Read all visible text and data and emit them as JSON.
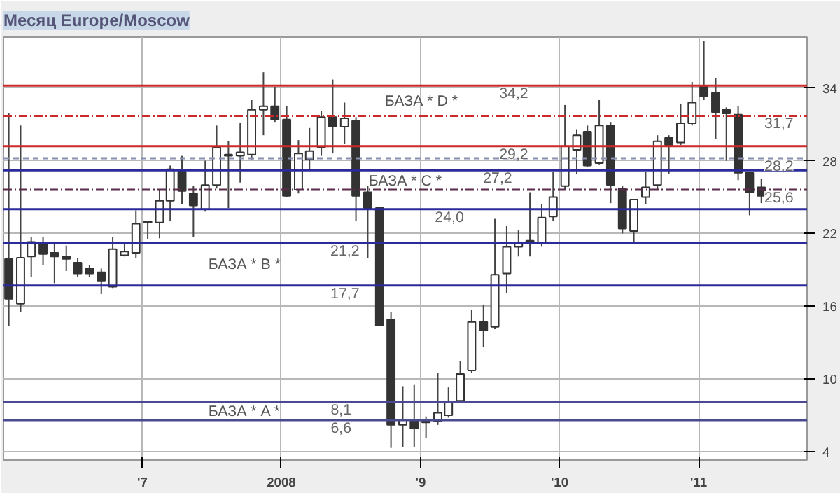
{
  "chart_data": {
    "type": "candlestick",
    "title": "Месяц Europe/Moscow",
    "x": [
      "2006-01-15",
      "2006-02-15",
      "2006-03-15",
      "2006-04-15",
      "2006-05-15",
      "2006-06-15",
      "2006-07-15",
      "2006-08-15",
      "2006-09-15",
      "2006-10-15",
      "2006-11-15",
      "2006-12-15",
      "2007-01-15",
      "2007-02-15",
      "2007-03-15",
      "2007-04-15",
      "2007-05-15",
      "2007-06-15",
      "2007-07-15",
      "2007-08-15",
      "2007-09-15",
      "2007-10-15",
      "2007-11-15",
      "2007-12-15",
      "2008-01-15",
      "2008-02-15",
      "2008-03-15",
      "2008-04-15",
      "2008-05-15",
      "2008-06-15",
      "2008-07-15",
      "2008-08-15",
      "2008-09-15",
      "2008-10-15",
      "2008-11-15",
      "2008-12-15",
      "2009-01-15",
      "2009-02-15",
      "2009-03-15",
      "2009-04-15",
      "2009-05-15",
      "2009-06-15",
      "2009-07-15",
      "2009-08-15",
      "2009-09-15",
      "2009-10-15",
      "2009-11-15",
      "2009-12-15",
      "2010-01-15",
      "2010-02-15",
      "2010-03-15",
      "2010-04-15",
      "2010-05-15",
      "2010-06-15",
      "2010-07-15",
      "2010-08-15",
      "2010-09-15",
      "2010-10-15",
      "2010-11-15",
      "2010-12-15",
      "2011-01-15",
      "2011-02-15",
      "2011-03-15",
      "2011-04-15",
      "2011-05-15",
      "2011-06-15"
    ],
    "ohlc": [
      [
        19.9,
        31.9,
        14.4,
        16.6
      ],
      [
        16.2,
        30.9,
        15.5,
        20.0
      ],
      [
        20.1,
        21.7,
        18.4,
        21.3
      ],
      [
        21.1,
        21.7,
        19.4,
        20.3
      ],
      [
        20.4,
        21.2,
        17.9,
        20.1
      ],
      [
        20.1,
        21.0,
        18.9,
        19.9
      ],
      [
        19.6,
        20.0,
        18.4,
        18.7
      ],
      [
        19.1,
        19.4,
        18.4,
        18.7
      ],
      [
        18.8,
        19.1,
        17.0,
        18.1
      ],
      [
        17.6,
        21.7,
        17.5,
        20.7
      ],
      [
        20.2,
        21.2,
        20.1,
        20.5
      ],
      [
        20.4,
        23.9,
        20.0,
        22.8
      ],
      [
        22.9,
        23.0,
        21.5,
        23.0
      ],
      [
        22.9,
        25.6,
        21.6,
        24.7
      ],
      [
        24.7,
        27.6,
        23.0,
        27.3
      ],
      [
        27.1,
        28.4,
        24.4,
        25.5
      ],
      [
        25.3,
        25.9,
        21.7,
        24.3
      ],
      [
        24.0,
        28.0,
        23.8,
        26.0
      ],
      [
        26.0,
        30.9,
        25.7,
        29.1
      ],
      [
        28.4,
        29.6,
        24.1,
        28.5
      ],
      [
        28.4,
        31.1,
        26.2,
        28.7
      ],
      [
        28.5,
        33.0,
        28.1,
        32.2
      ],
      [
        32.2,
        35.3,
        30.1,
        32.5
      ],
      [
        32.5,
        34.1,
        31.2,
        31.4
      ],
      [
        31.4,
        32.5,
        25.0,
        25.1
      ],
      [
        25.6,
        29.7,
        25.3,
        28.6
      ],
      [
        28.1,
        30.7,
        27.3,
        28.8
      ],
      [
        29.1,
        32.1,
        28.4,
        31.6
      ],
      [
        31.6,
        34.7,
        28.6,
        30.8
      ],
      [
        30.8,
        32.8,
        29.4,
        31.5
      ],
      [
        31.3,
        31.6,
        23.0,
        25.1
      ],
      [
        25.4,
        25.9,
        20.0,
        24.1
      ],
      [
        24.1,
        24.1,
        14.4,
        14.4
      ],
      [
        14.9,
        15.5,
        4.3,
        6.2
      ],
      [
        6.2,
        9.4,
        4.4,
        6.6
      ],
      [
        6.5,
        9.5,
        4.4,
        5.9
      ],
      [
        6.4,
        6.9,
        5.1,
        6.5
      ],
      [
        6.5,
        10.5,
        6.2,
        7.2
      ],
      [
        7.0,
        9.3,
        6.8,
        8.1
      ],
      [
        8.2,
        11.5,
        8.0,
        10.4
      ],
      [
        10.7,
        15.7,
        10.5,
        14.7
      ],
      [
        14.7,
        16.1,
        12.6,
        14.0
      ],
      [
        14.3,
        23.2,
        14.1,
        18.6
      ],
      [
        18.7,
        22.6,
        17.1,
        20.9
      ],
      [
        20.9,
        22.3,
        20.1,
        21.2
      ],
      [
        21.4,
        25.4,
        20.1,
        21.2
      ],
      [
        21.2,
        24.4,
        20.9,
        23.3
      ],
      [
        23.4,
        27.1,
        23.0,
        25.0
      ],
      [
        25.9,
        32.6,
        25.6,
        29.2
      ],
      [
        28.9,
        30.6,
        26.9,
        30.1
      ],
      [
        30.4,
        30.9,
        27.5,
        27.6
      ],
      [
        27.8,
        33.0,
        27.7,
        30.9
      ],
      [
        30.9,
        31.2,
        24.5,
        26.0
      ],
      [
        25.7,
        25.9,
        22.0,
        22.4
      ],
      [
        22.2,
        24.8,
        21.1,
        24.8
      ],
      [
        25.0,
        27.1,
        24.4,
        25.8
      ],
      [
        26.0,
        30.1,
        25.6,
        29.6
      ],
      [
        29.9,
        30.1,
        26.9,
        29.3
      ],
      [
        29.5,
        32.7,
        29.3,
        31.1
      ],
      [
        31.1,
        34.5,
        30.9,
        32.8
      ],
      [
        34.1,
        37.9,
        33.0,
        33.3
      ],
      [
        33.6,
        34.8,
        29.8,
        32.0
      ],
      [
        32.2,
        32.4,
        28.0,
        31.9
      ],
      [
        31.8,
        32.5,
        26.4,
        27.0
      ],
      [
        27.0,
        27.0,
        23.5,
        25.4
      ],
      [
        25.8,
        26.5,
        24.5,
        25.1
      ]
    ],
    "xlim": [
      "2006-01-01",
      "2011-10-13"
    ],
    "ylim": [
      3.3,
      38.2
    ],
    "xticks": [
      {
        "value": "2007-01-01",
        "label": "'7"
      },
      {
        "value": "2008-01-01",
        "label": "2008"
      },
      {
        "value": "2009-01-01",
        "label": "'9"
      },
      {
        "value": "2010-01-01",
        "label": "'10"
      },
      {
        "value": "2011-01-01",
        "label": "'11"
      }
    ],
    "yticks": [
      4,
      10,
      16,
      22,
      28,
      34
    ],
    "grid": true,
    "ref_lines": [
      {
        "axis": "y",
        "value": 34.2,
        "label": "34,2",
        "color": "#cc2a2a",
        "line_style": "solid"
      },
      {
        "axis": "y",
        "value": 31.7,
        "label": "31,7",
        "color": "#cc2a2a",
        "line_style": "dashdot"
      },
      {
        "axis": "y",
        "value": 29.2,
        "label": "29,2",
        "color": "#cc2a2a",
        "line_style": "solid"
      },
      {
        "axis": "y",
        "value": 28.2,
        "label": "28,2",
        "color": "#8a8fb0",
        "line_style": "dashed"
      },
      {
        "axis": "y",
        "value": 27.2,
        "label": "27,2",
        "color": "#2a2a9a",
        "line_style": "solid"
      },
      {
        "axis": "y",
        "value": 25.6,
        "label": "25,6",
        "color": "#5a2a4a",
        "line_style": "dashdot"
      },
      {
        "axis": "y",
        "value": 24.0,
        "label": "24,0",
        "color": "#2a2a9a",
        "line_style": "solid"
      },
      {
        "axis": "y",
        "value": 21.2,
        "label": "21,2",
        "color": "#2a2a9a",
        "line_style": "solid"
      },
      {
        "axis": "y",
        "value": 17.7,
        "label": "17,7",
        "color": "#2a2a9a",
        "line_style": "solid"
      },
      {
        "axis": "y",
        "value": 8.1,
        "label": "8,1",
        "color": "#4a4a90",
        "line_style": "solid"
      },
      {
        "axis": "y",
        "value": 6.6,
        "label": "6,6",
        "color": "#4a4a90",
        "line_style": "solid"
      }
    ],
    "annotations": [
      "БАЗА * D *",
      "БАЗА * C *",
      "БАЗА * B *",
      "БАЗА * A *"
    ]
  }
}
